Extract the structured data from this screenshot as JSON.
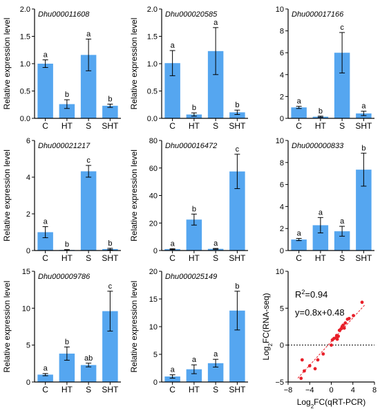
{
  "colors": {
    "bar": "#55A6F0",
    "error": "#000000",
    "point": "#E8202A",
    "axis": "#000000"
  },
  "chart_data": [
    {
      "type": "bar",
      "title": "Dhu000011608",
      "ylabel": "Relative expression level",
      "categories": [
        "C",
        "HT",
        "S",
        "SHT"
      ],
      "values": [
        1.0,
        0.26,
        1.16,
        0.23
      ],
      "errors": [
        0.07,
        0.08,
        0.29,
        0.03
      ],
      "letters": [
        "a",
        "b",
        "a",
        "b"
      ],
      "ylim": [
        0,
        2.0
      ],
      "yticks": [
        0,
        0.5,
        1.0,
        1.5,
        2.0
      ],
      "yticklabels": [
        "0.0",
        "0.5",
        "1.0",
        "1.5",
        "2.0"
      ]
    },
    {
      "type": "bar",
      "title": "Dhu000020585",
      "ylabel": "Relative expression level",
      "categories": [
        "C",
        "HT",
        "S",
        "SHT"
      ],
      "values": [
        1.01,
        0.07,
        1.23,
        0.11
      ],
      "errors": [
        0.23,
        0.03,
        0.43,
        0.04
      ],
      "letters": [
        "a",
        "b",
        "a",
        "b"
      ],
      "ylim": [
        0,
        2.0
      ],
      "yticks": [
        0,
        0.5,
        1.0,
        1.5,
        2.0
      ],
      "yticklabels": [
        "0.0",
        "0.5",
        "1.0",
        "1.5",
        "2.0"
      ]
    },
    {
      "type": "bar",
      "title": "Dhu000017166",
      "ylabel": "",
      "categories": [
        "C",
        "HT",
        "S",
        "SHT"
      ],
      "values": [
        1.0,
        0.15,
        6.0,
        0.45
      ],
      "errors": [
        0.1,
        0.05,
        1.85,
        0.2
      ],
      "letters": [
        "a",
        "b",
        "c",
        "a"
      ],
      "ylim": [
        0,
        10
      ],
      "yticks": [
        0,
        2,
        4,
        6,
        8,
        10
      ],
      "yticklabels": [
        "0",
        "2",
        "4",
        "6",
        "8",
        "10"
      ]
    },
    {
      "type": "bar",
      "title": "Dhu000021217",
      "ylabel": "Relative expression level",
      "categories": [
        "C",
        "HT",
        "S",
        "SHT"
      ],
      "values": [
        1.0,
        0.03,
        4.32,
        0.08
      ],
      "errors": [
        0.3,
        0.02,
        0.32,
        0.04
      ],
      "letters": [
        "a",
        "b",
        "c",
        "b"
      ],
      "ylim": [
        0,
        6
      ],
      "yticks": [
        0,
        2,
        4,
        6
      ],
      "yticklabels": [
        "0",
        "2",
        "4",
        "6"
      ]
    },
    {
      "type": "bar",
      "title": "Dhu000016472",
      "ylabel": "Relative expression level",
      "categories": [
        "C",
        "HT",
        "S",
        "SHT"
      ],
      "values": [
        1.0,
        22.5,
        1.2,
        57.5
      ],
      "errors": [
        0.3,
        4.0,
        0.3,
        12.5
      ],
      "letters": [
        "a",
        "b",
        "a",
        "c"
      ],
      "ylim": [
        0,
        80
      ],
      "yticks": [
        0,
        20,
        40,
        60,
        80
      ],
      "yticklabels": [
        "0",
        "20",
        "40",
        "60",
        "80"
      ]
    },
    {
      "type": "bar",
      "title": "Dhu000000833",
      "ylabel": "",
      "categories": [
        "C",
        "HT",
        "S",
        "SHT"
      ],
      "values": [
        1.0,
        2.3,
        1.75,
        7.35
      ],
      "errors": [
        0.1,
        0.7,
        0.45,
        1.5
      ],
      "letters": [
        "a",
        "a",
        "a",
        "b"
      ],
      "ylim": [
        0,
        10
      ],
      "yticks": [
        0,
        2,
        4,
        6,
        8,
        10
      ],
      "yticklabels": [
        "0",
        "2",
        "4",
        "6",
        "8",
        "10"
      ]
    },
    {
      "type": "bar",
      "title": "Dhu000009786",
      "ylabel": "Relative expression level",
      "categories": [
        "C",
        "HT",
        "S",
        "SHT"
      ],
      "values": [
        1.0,
        3.85,
        2.3,
        9.6
      ],
      "errors": [
        0.15,
        0.9,
        0.25,
        2.7
      ],
      "letters": [
        "a",
        "b",
        "ab",
        "c"
      ],
      "ylim": [
        0,
        15
      ],
      "yticks": [
        0,
        5,
        10,
        15
      ],
      "yticklabels": [
        "0",
        "5",
        "10",
        "15"
      ]
    },
    {
      "type": "bar",
      "title": "Dhu000025149",
      "ylabel": "Relative expression level",
      "categories": [
        "C",
        "HT",
        "S",
        "SHT"
      ],
      "values": [
        1.0,
        2.3,
        3.4,
        12.9
      ],
      "errors": [
        0.3,
        0.8,
        0.7,
        3.5
      ],
      "letters": [
        "a",
        "a",
        "a",
        "b"
      ],
      "ylim": [
        0,
        20
      ],
      "yticks": [
        0,
        5,
        10,
        15,
        20
      ],
      "yticklabels": [
        "0",
        "5",
        "10",
        "15",
        "20"
      ]
    },
    {
      "type": "scatter",
      "xlabel_main": "Log",
      "xlabel_sub": "2",
      "xlabel_rest": "FC(qRT-PCR)",
      "ylabel_main": "Log",
      "ylabel_sub": "2",
      "ylabel_rest": "FC(RNA-seq)",
      "r2_main": "R",
      "r2_sup": "2",
      "r2_rest": "=0.94",
      "equation": "y=0.8x+0.48",
      "slope": 0.8,
      "intercept": 0.48,
      "xlim": [
        -8,
        8
      ],
      "ylim": [
        -5,
        10
      ],
      "xticks": [
        -8,
        -4,
        0,
        4,
        8
      ],
      "xticklabels": [
        "−8",
        "−4",
        "0",
        "4",
        "8"
      ],
      "yticks": [
        -5,
        0,
        5,
        10
      ],
      "yticklabels": [
        "−5",
        "0",
        "5",
        "10"
      ],
      "x": [
        -5.6,
        -5.4,
        -5.0,
        -4.0,
        -3.0,
        -2.5,
        -1.5,
        0.0,
        0.2,
        0.5,
        0.9,
        1.0,
        1.1,
        1.3,
        1.5,
        1.8,
        2.0,
        2.2,
        2.4,
        2.6,
        3.0,
        3.3,
        4.1,
        5.7
      ],
      "y": [
        -4.5,
        -2.0,
        -3.5,
        -2.8,
        -3.2,
        -2.0,
        -1.2,
        0.0,
        0.7,
        0.9,
        1.0,
        1.3,
        0.8,
        1.2,
        2.0,
        2.2,
        2.5,
        2.7,
        2.3,
        3.0,
        3.5,
        3.6,
        4.0,
        5.8
      ]
    }
  ]
}
